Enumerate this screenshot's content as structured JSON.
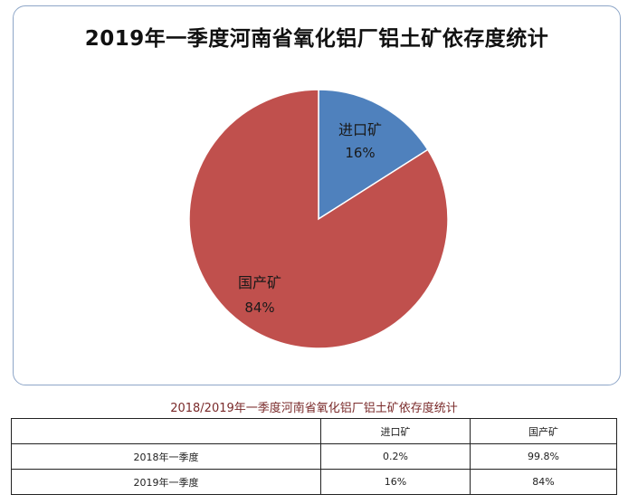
{
  "chart_data": {
    "type": "pie",
    "title": "2019年一季度河南省氧化铝厂铝土矿依存度统计",
    "slices": [
      {
        "label": "进口矿",
        "value": 16,
        "value_label": "16%",
        "color": "#4f81bd"
      },
      {
        "label": "国产矿",
        "value": 84,
        "value_label": "84%",
        "color": "#c0504d"
      }
    ]
  },
  "table": {
    "title": "2018/2019年一季度河南省氧化铝厂铝土矿依存度统计",
    "headers": [
      "",
      "进口矿",
      "国产矿"
    ],
    "rows": [
      [
        "2018年一季度",
        "0.2%",
        "99.8%"
      ],
      [
        "2019年一季度",
        "16%",
        "84%"
      ]
    ]
  }
}
